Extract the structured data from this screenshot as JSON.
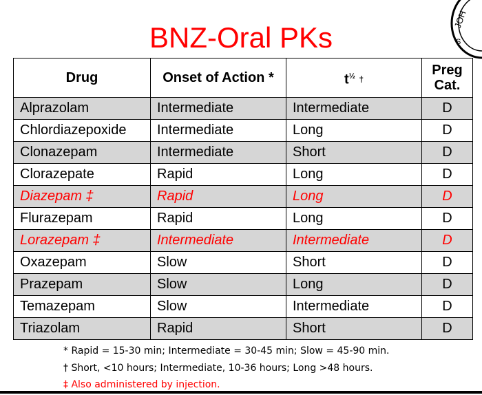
{
  "title": "BNZ-Oral PKs",
  "headers": {
    "drug": "Drug",
    "onset": "Onset of Action *",
    "half_life_base": "t",
    "half_life_sup": "½",
    "half_life_mark": "†",
    "preg_line1": "Preg",
    "preg_line2": "Cat."
  },
  "rows": [
    {
      "drug": "Alprazolam",
      "onset": "Intermediate",
      "half_life": "Intermediate",
      "category": "D",
      "highlight": false
    },
    {
      "drug": "Chlordiazepoxide",
      "onset": "Intermediate",
      "half_life": "Long",
      "category": "D",
      "highlight": false
    },
    {
      "drug": "Clonazepam",
      "onset": "Intermediate",
      "half_life": "Short",
      "category": "D",
      "highlight": false
    },
    {
      "drug": "Clorazepate",
      "onset": "Rapid",
      "half_life": "Long",
      "category": "D",
      "highlight": false
    },
    {
      "drug": "Diazepam ‡",
      "onset": "Rapid",
      "half_life": "Long",
      "category": "D",
      "highlight": true
    },
    {
      "drug": "Flurazepam",
      "onset": "Rapid",
      "half_life": "Long",
      "category": "D",
      "highlight": false
    },
    {
      "drug": "Lorazepam ‡",
      "onset": "Intermediate",
      "half_life": "Intermediate",
      "category": "D",
      "highlight": true
    },
    {
      "drug": "Oxazepam",
      "onset": "Slow",
      "half_life": "Short",
      "category": "D",
      "highlight": false
    },
    {
      "drug": "Prazepam",
      "onset": "Slow",
      "half_life": "Long",
      "category": "D",
      "highlight": false
    },
    {
      "drug": "Temazepam",
      "onset": "Slow",
      "half_life": "Intermediate",
      "category": "D",
      "highlight": false
    },
    {
      "drug": "Triazolam",
      "onset": "Rapid",
      "half_life": "Short",
      "category": "D",
      "highlight": false
    }
  ],
  "footnotes": [
    {
      "text": "* Rapid = 15-30 min; Intermediate = 30-45 min; Slow = 45-90 min.",
      "color": "#000000"
    },
    {
      "text": "† Short, <10 hours; Intermediate, 10-36 hours; Long >48 hours.",
      "color": "#000000"
    },
    {
      "text": "‡ Also administered by injection.",
      "color": "#ff0000"
    }
  ],
  "colors": {
    "title": "#ff0000",
    "highlight_text": "#ff0000",
    "row_shade": "#d6d6d6"
  }
}
